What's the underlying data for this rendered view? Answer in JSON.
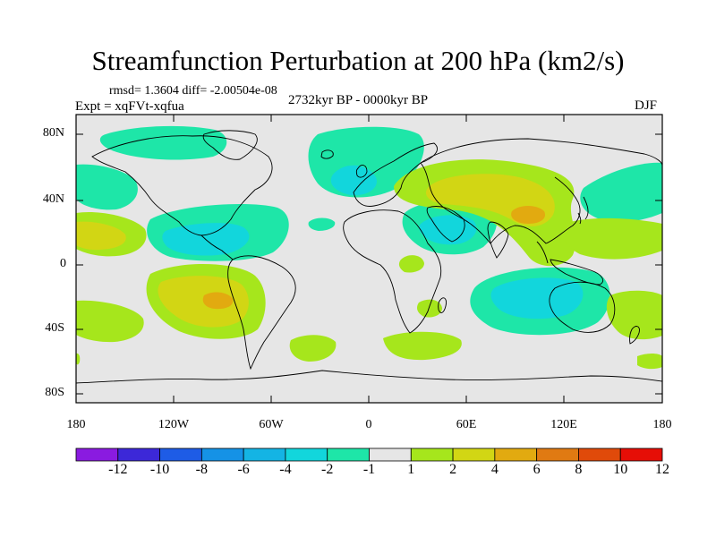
{
  "title": "Streamfunction Perturbation at 200 hPa (km2/s)",
  "stats": "rmsd= 1.3604 diff= -2.00504e-08",
  "experiment": "Expt = xqFVt-xqfua",
  "period": "2732kyr BP - 0000kyr BP",
  "season": "DJF",
  "lat_labels": [
    "80N",
    "40N",
    "0",
    "40S",
    "80S"
  ],
  "lon_labels": [
    "180",
    "120W",
    "60W",
    "0",
    "60E",
    "120E",
    "180"
  ],
  "colorbar": {
    "labels": [
      "-12",
      "-10",
      "-8",
      "-6",
      "-4",
      "-2",
      "-1",
      "1",
      "2",
      "4",
      "6",
      "8",
      "10",
      "12"
    ],
    "colors": [
      "#8a1be0",
      "#3c28d8",
      "#1e5ce6",
      "#1592e6",
      "#14b4e4",
      "#12d6dc",
      "#1ee6a8",
      "#e6e6e6",
      "#a6e61c",
      "#d2d614",
      "#e2aa10",
      "#e07a12",
      "#e04a0a",
      "#e60e06"
    ]
  },
  "map_colors": {
    "background": "#e6e6e6",
    "neg1": "#1ee6a8",
    "neg2": "#12d6dc",
    "pos1": "#a6e61c",
    "pos2": "#d2d614",
    "pos3": "#e2aa10",
    "coast": "#000000"
  }
}
